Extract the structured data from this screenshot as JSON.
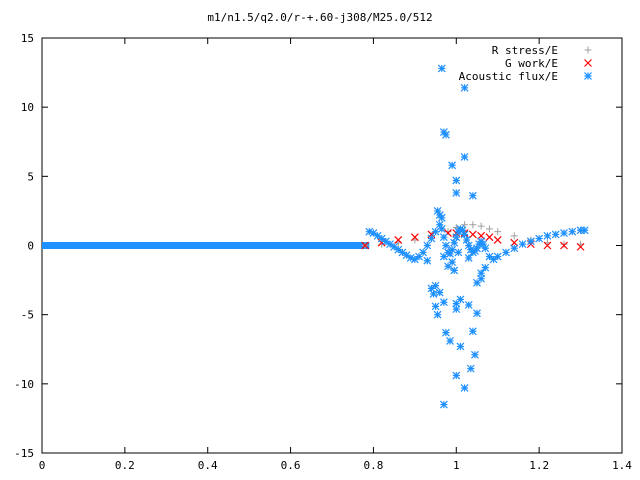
{
  "chart_data": {
    "type": "scatter",
    "title": "m1/n1.5/q2.0/r-+.60-j308/M25.0/512",
    "xlabel": "",
    "ylabel": "",
    "xlim": [
      0,
      1.4
    ],
    "ylim": [
      -15,
      15
    ],
    "x_ticks": [
      "0",
      "0.2",
      "0.4",
      "0.6",
      "0.8",
      "1",
      "1.2",
      "1.4"
    ],
    "y_ticks": [
      "15",
      "10",
      "5",
      "0",
      "-5",
      "-10",
      "-15"
    ],
    "grid": false,
    "legend_position": "top-right",
    "series": [
      {
        "name": "R stress/E",
        "marker": "+",
        "color": "#a0a0a0",
        "x": [
          0.78,
          0.82,
          0.86,
          0.9,
          0.94,
          0.98,
          1.0,
          1.02,
          1.04,
          1.06,
          1.08,
          1.1,
          1.14,
          1.18,
          1.22,
          1.26,
          1.3
        ],
        "y": [
          0.0,
          0.1,
          0.2,
          0.4,
          0.7,
          1.0,
          1.3,
          1.5,
          1.5,
          1.4,
          1.2,
          1.0,
          0.7,
          0.4,
          0.2,
          0.1,
          0.1
        ]
      },
      {
        "name": "G work/E",
        "marker": "x",
        "color": "#ff0000",
        "x": [
          0.78,
          0.82,
          0.86,
          0.9,
          0.94,
          0.98,
          1.0,
          1.02,
          1.04,
          1.06,
          1.08,
          1.1,
          1.14,
          1.18,
          1.22,
          1.26,
          1.3
        ],
        "y": [
          0.0,
          0.2,
          0.4,
          0.6,
          0.8,
          0.9,
          0.9,
          0.9,
          0.8,
          0.7,
          0.6,
          0.4,
          0.2,
          0.1,
          0.0,
          0.0,
          -0.1
        ]
      },
      {
        "name": "Acoustic flux/E",
        "marker": "*",
        "color": "#1e90ff",
        "x": [
          0.79,
          0.8,
          0.81,
          0.82,
          0.83,
          0.84,
          0.85,
          0.86,
          0.87,
          0.88,
          0.89,
          0.9,
          0.91,
          0.92,
          0.93,
          0.94,
          0.95,
          0.96,
          0.965,
          0.97,
          0.975,
          0.98,
          0.985,
          0.99,
          0.995,
          1.0,
          1.005,
          1.01,
          1.015,
          1.02,
          1.025,
          1.03,
          1.035,
          1.04,
          1.045,
          1.05,
          1.055,
          1.06,
          1.065,
          1.07,
          1.08,
          1.09,
          1.1,
          1.12,
          1.14,
          1.16,
          1.18,
          1.2,
          1.22,
          1.24,
          1.26,
          1.28,
          1.3,
          1.31,
          0.965,
          0.97,
          0.975,
          1.02,
          0.99,
          1.0,
          0.955,
          0.96,
          0.965,
          1.0,
          1.02,
          1.04,
          0.97,
          0.98,
          0.99,
          0.995,
          1.005,
          1.03,
          1.06,
          0.94,
          0.95,
          0.96,
          0.97,
          1.0,
          1.01,
          1.03,
          1.05,
          0.975,
          0.985,
          1.0,
          1.01,
          1.04,
          0.93,
          0.945,
          0.955,
          1.05,
          1.06,
          1.07,
          0.97,
          1.02,
          1.035,
          0.95,
          1.0,
          1.045
        ],
        "y": [
          1.0,
          0.9,
          0.7,
          0.5,
          0.3,
          0.1,
          -0.1,
          -0.3,
          -0.5,
          -0.7,
          -0.9,
          -1.0,
          -0.8,
          -0.5,
          0.0,
          0.5,
          1.0,
          1.5,
          1.2,
          0.6,
          0.0,
          -0.5,
          -0.6,
          -0.3,
          0.2,
          0.6,
          1.0,
          1.2,
          1.1,
          0.8,
          0.4,
          0.0,
          -0.3,
          -0.5,
          -0.4,
          -0.2,
          0.1,
          0.3,
          0.1,
          -0.2,
          -0.8,
          -1.0,
          -0.8,
          -0.5,
          -0.2,
          0.1,
          0.3,
          0.5,
          0.7,
          0.8,
          0.9,
          1.0,
          1.1,
          1.1,
          12.8,
          8.2,
          8.0,
          11.4,
          5.8,
          3.8,
          2.5,
          2.2,
          2.0,
          4.7,
          6.4,
          3.6,
          -0.8,
          -1.5,
          -1.2,
          -1.8,
          -0.5,
          -0.9,
          -2.4,
          -3.1,
          -2.9,
          -3.4,
          -4.1,
          -4.2,
          -3.9,
          -4.3,
          -4.9,
          -6.3,
          -6.9,
          -9.4,
          -7.3,
          -6.2,
          -1.1,
          -3.5,
          -5.0,
          -2.7,
          -2.0,
          -1.6,
          -11.5,
          -10.3,
          -8.9,
          -4.4,
          -4.6,
          -7.9
        ]
      }
    ]
  }
}
